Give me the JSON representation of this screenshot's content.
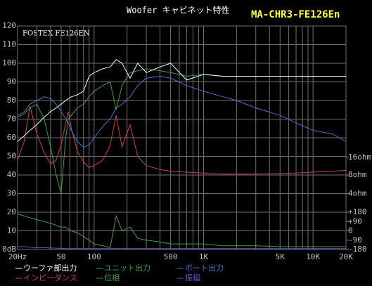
{
  "chart_data": {
    "type": "line",
    "title": "Woofer キャビネット特性",
    "model": "MA-CHR3-FE126En",
    "annotation": "FOSTEX FE126EN",
    "log_x": true,
    "x": [
      20,
      23,
      26,
      30,
      35,
      40,
      45,
      50,
      55,
      58,
      62,
      70,
      80,
      90,
      100,
      120,
      140,
      159,
      180,
      213,
      250,
      300,
      400,
      500,
      700,
      1000,
      1500,
      2000,
      3000,
      5000,
      7000,
      10000,
      15000,
      20000
    ],
    "xlim": [
      20,
      20000
    ],
    "xgrid": [
      20,
      30,
      40,
      50,
      60,
      70,
      80,
      90,
      100,
      200,
      300,
      400,
      500,
      600,
      700,
      800,
      900,
      1000,
      2000,
      3000,
      4000,
      5000,
      6000,
      7000,
      8000,
      9000,
      10000,
      20000
    ],
    "xticks": [
      {
        "value": 20,
        "label": "20Hz"
      },
      50,
      100,
      500,
      {
        "value": 1000,
        "label": "1K"
      },
      {
        "value": 5000,
        "label": "5K"
      },
      {
        "value": 10000,
        "label": "10K"
      },
      {
        "value": 20000,
        "label": "20K"
      }
    ],
    "ylim": [
      0,
      120
    ],
    "yticks": [
      {
        "value": 0,
        "label": "0dB"
      },
      10,
      20,
      30,
      40,
      50,
      60,
      70,
      80,
      90,
      100,
      110,
      120
    ],
    "y2ticks": [
      {
        "value": 49.5,
        "label": "16ohm"
      },
      {
        "value": 40,
        "label": "8ohm"
      },
      {
        "value": 30,
        "label": "4ohm"
      },
      {
        "value": 20,
        "label": "+180"
      },
      {
        "value": 15,
        "label": "+90"
      },
      {
        "value": 10,
        "label": "0"
      },
      {
        "value": 5,
        "label": "-90"
      },
      {
        "value": 0,
        "label": "-180"
      }
    ],
    "grid": true,
    "series": [
      {
        "name": "ウーファ部出力",
        "color": "#e4ffff",
        "values": [
          58,
          61,
          64,
          67,
          71,
          74,
          76,
          78,
          80,
          81,
          82,
          83,
          85,
          93,
          95,
          97,
          98,
          102,
          100,
          92,
          100,
          95,
          98,
          100,
          91,
          94,
          93,
          93,
          93,
          93,
          93,
          93,
          93,
          93
        ]
      },
      {
        "name": "ユニット出力",
        "color": "#3fa040",
        "values": [
          71,
          73,
          76,
          78,
          70,
          55,
          40,
          30,
          60,
          70,
          72,
          76,
          78,
          82,
          85,
          88,
          90,
          75,
          88,
          95,
          96,
          97,
          96,
          95,
          93,
          94,
          93,
          93,
          93,
          93,
          93,
          93,
          93,
          93
        ]
      },
      {
        "name": "ポート出力",
        "color": "#4a70d0",
        "values": [
          72,
          74,
          78,
          80,
          82,
          81,
          78,
          74,
          70,
          68,
          64,
          58,
          55,
          56,
          60,
          66,
          70,
          76,
          78,
          82,
          88,
          92,
          93,
          92,
          88,
          85,
          82,
          80,
          76,
          72,
          68,
          64,
          62,
          58
        ]
      },
      {
        "name": "インピーダンス",
        "color": "#d04040",
        "values": [
          48,
          58,
          77,
          62,
          52,
          46,
          48,
          56,
          68,
          74,
          65,
          53,
          47,
          44,
          45,
          48,
          56,
          72,
          55,
          67,
          50,
          45,
          43,
          42,
          41.5,
          41,
          40.5,
          40.5,
          40.5,
          40.8,
          41,
          41.5,
          42,
          42.5
        ]
      },
      {
        "name": "位相",
        "color": "#3fa040",
        "values": [
          19,
          18,
          17,
          16,
          15,
          14,
          13,
          12,
          12,
          11,
          10,
          9,
          7,
          5,
          3,
          2,
          1,
          18,
          10,
          12,
          6,
          5,
          4,
          3,
          3,
          3,
          2,
          2,
          2,
          1.5,
          1.5,
          1.5,
          1.5,
          1.5
        ]
      },
      {
        "name": "振幅",
        "color": "#7050d0",
        "values": [
          1.5,
          1.5,
          1.2,
          1,
          1,
          0.8,
          0.7,
          0.6,
          0.5,
          0.5,
          0.5,
          0.5,
          0.5,
          0.5,
          0.5,
          0.5,
          0.5,
          0.5,
          0.5,
          0.5,
          0.5,
          0.5,
          0.5,
          0.5,
          0.5,
          0.5,
          0.5,
          0.5,
          0.5,
          0.5,
          0.5,
          0.5,
          0.5,
          0.5
        ]
      }
    ]
  }
}
